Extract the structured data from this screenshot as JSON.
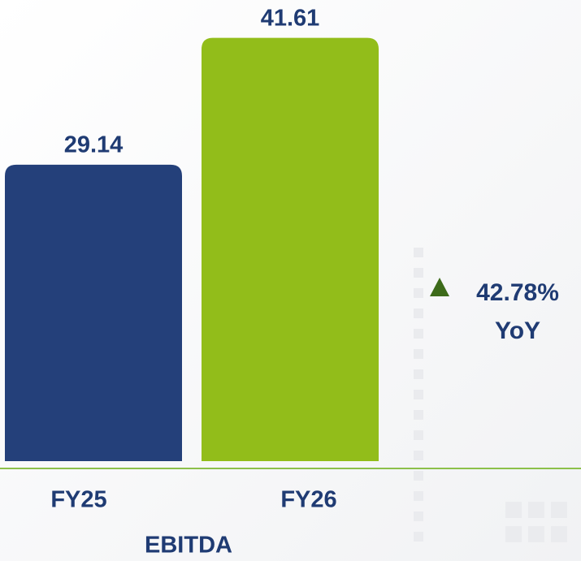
{
  "chart_data": {
    "type": "bar",
    "title": "EBITDA",
    "categories": [
      "FY25",
      "FY26"
    ],
    "values": [
      29.14,
      41.61
    ],
    "colors": [
      "#24407a",
      "#92bd1a"
    ],
    "annotation": [
      "42.78%",
      "YoY"
    ],
    "annotation_color": "#3d6b1a"
  }
}
